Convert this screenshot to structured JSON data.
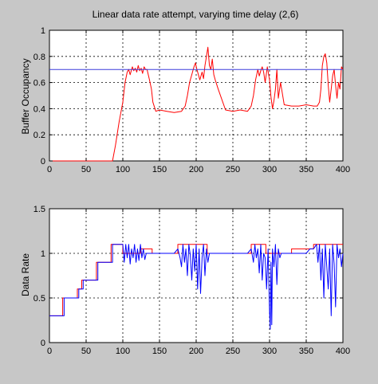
{
  "chart_data": [
    {
      "type": "line",
      "title": "Linear data rate attempt, varying time delay (2,6)",
      "xlabel": "",
      "ylabel": "Buffer Occupancy",
      "xlim": [
        0,
        400
      ],
      "ylim": [
        0,
        1
      ],
      "xticks": [
        0,
        50,
        100,
        150,
        200,
        250,
        300,
        350,
        400
      ],
      "yticks": [
        0,
        0.2,
        0.4,
        0.6,
        0.8,
        1
      ],
      "grid": true,
      "series": [
        {
          "color": "#ff0000",
          "x": [
            0,
            86,
            90,
            95,
            100,
            103,
            106,
            108,
            110,
            113,
            115,
            117,
            119,
            121,
            123,
            125,
            127,
            129,
            131,
            133,
            136,
            139,
            141,
            145,
            150,
            160,
            170,
            180,
            185,
            188,
            191,
            194,
            197,
            199,
            201,
            203,
            205,
            208,
            210,
            212,
            214,
            216,
            218,
            220,
            222,
            224,
            226,
            230,
            240,
            250,
            260,
            270,
            275,
            278,
            281,
            284,
            286,
            288,
            290,
            292,
            294,
            297,
            300,
            302,
            304,
            306,
            308,
            310,
            312,
            315,
            320,
            330,
            340,
            350,
            360,
            365,
            368,
            370,
            372,
            374,
            376,
            378,
            380,
            382,
            384,
            386,
            388,
            390,
            392,
            394,
            396,
            398,
            400
          ],
          "y": [
            0,
            0,
            0.12,
            0.3,
            0.45,
            0.6,
            0.68,
            0.7,
            0.66,
            0.72,
            0.69,
            0.71,
            0.68,
            0.73,
            0.69,
            0.71,
            0.67,
            0.72,
            0.7,
            0.7,
            0.63,
            0.55,
            0.45,
            0.38,
            0.39,
            0.38,
            0.37,
            0.38,
            0.42,
            0.5,
            0.6,
            0.66,
            0.72,
            0.75,
            0.7,
            0.66,
            0.62,
            0.68,
            0.63,
            0.73,
            0.8,
            0.87,
            0.73,
            0.7,
            0.78,
            0.66,
            0.62,
            0.55,
            0.39,
            0.38,
            0.39,
            0.38,
            0.42,
            0.5,
            0.62,
            0.7,
            0.65,
            0.69,
            0.72,
            0.68,
            0.6,
            0.72,
            0.62,
            0.49,
            0.4,
            0.46,
            0.55,
            0.7,
            0.48,
            0.6,
            0.43,
            0.42,
            0.42,
            0.43,
            0.42,
            0.42,
            0.45,
            0.55,
            0.73,
            0.8,
            0.82,
            0.75,
            0.58,
            0.45,
            0.55,
            0.65,
            0.7,
            0.58,
            0.48,
            0.6,
            0.55,
            0.72,
            0.7
          ]
        },
        {
          "color": "#3b3bdb",
          "x": [
            0,
            400
          ],
          "y": [
            0.7,
            0.7
          ]
        }
      ]
    },
    {
      "type": "line",
      "title": "",
      "xlabel": "",
      "ylabel": "Data Rate",
      "xlim": [
        0,
        400
      ],
      "ylim": [
        0,
        1.5
      ],
      "xticks": [
        0,
        50,
        100,
        150,
        200,
        250,
        300,
        350,
        400
      ],
      "yticks": [
        0,
        0.5,
        1,
        1.5
      ],
      "ytick_labels": [
        "0",
        "0.5",
        "1",
        "1.5"
      ],
      "grid": true,
      "series": [
        {
          "color": "#ff0000",
          "x": [
            0,
            18,
            18,
            38,
            38,
            44,
            44,
            64,
            64,
            84,
            84,
            100,
            100,
            124,
            124,
            140,
            140,
            175,
            175,
            215,
            215,
            275,
            275,
            295,
            295,
            330,
            330,
            360,
            360,
            400
          ],
          "y": [
            0.3,
            0.3,
            0.5,
            0.5,
            0.6,
            0.6,
            0.7,
            0.7,
            0.9,
            0.9,
            1.1,
            1.1,
            1.0,
            1.0,
            1.05,
            1.05,
            1.0,
            1.0,
            1.1,
            1.1,
            1.0,
            1.0,
            1.1,
            1.1,
            1.0,
            1.0,
            1.05,
            1.05,
            1.1,
            1.1
          ]
        },
        {
          "color": "#0000ff",
          "x": [
            0,
            20,
            20,
            40,
            40,
            46,
            46,
            66,
            66,
            86,
            86,
            100,
            102,
            104,
            106,
            108,
            110,
            112,
            114,
            116,
            118,
            120,
            122,
            124,
            126,
            128,
            130,
            132,
            140,
            150,
            160,
            170,
            175,
            178,
            180,
            182,
            184,
            186,
            188,
            190,
            192,
            194,
            196,
            198,
            200,
            202,
            204,
            206,
            208,
            210,
            212,
            214,
            216,
            218,
            220,
            225,
            240,
            260,
            270,
            275,
            278,
            280,
            282,
            284,
            286,
            288,
            290,
            292,
            294,
            296,
            298,
            300,
            301,
            302,
            303,
            304,
            306,
            308,
            310,
            312,
            314,
            316,
            318,
            320,
            330,
            340,
            350,
            355,
            360,
            364,
            366,
            368,
            370,
            372,
            374,
            376,
            378,
            380,
            382,
            384,
            386,
            388,
            390,
            392,
            394,
            396,
            398,
            400
          ],
          "y": [
            0.3,
            0.3,
            0.5,
            0.5,
            0.6,
            0.6,
            0.7,
            0.7,
            0.9,
            0.9,
            1.1,
            1.1,
            0.9,
            1.1,
            0.95,
            1.1,
            0.88,
            1.05,
            0.95,
            1.1,
            0.9,
            1.05,
            0.92,
            1.1,
            0.95,
            1.05,
            0.93,
            1.0,
            1.0,
            1.0,
            1.0,
            1.0,
            1.05,
            0.95,
            0.85,
            1.1,
            0.9,
            1.05,
            0.75,
            1.1,
            0.98,
            0.7,
            1.05,
            0.8,
            1.1,
            0.6,
            1.05,
            0.55,
            0.95,
            1.1,
            0.75,
            1.05,
            0.9,
            1.0,
            1.0,
            1.0,
            1.0,
            1.0,
            1.0,
            1.05,
            0.9,
            1.1,
            0.95,
            1.05,
            0.78,
            1.1,
            0.7,
            1.0,
            0.95,
            0.6,
            1.05,
            0.35,
            0.15,
            0.9,
            0.2,
            1.05,
            0.85,
            1.1,
            0.65,
            1.05,
            0.95,
            1.0,
            1.0,
            1.0,
            1.0,
            1.0,
            1.0,
            1.05,
            1.05,
            1.1,
            0.9,
            1.1,
            0.7,
            1.05,
            0.5,
            1.1,
            0.85,
            0.6,
            1.05,
            0.3,
            1.1,
            0.88,
            0.4,
            1.1,
            0.95,
            1.05,
            0.85,
            1.0
          ]
        }
      ]
    }
  ]
}
